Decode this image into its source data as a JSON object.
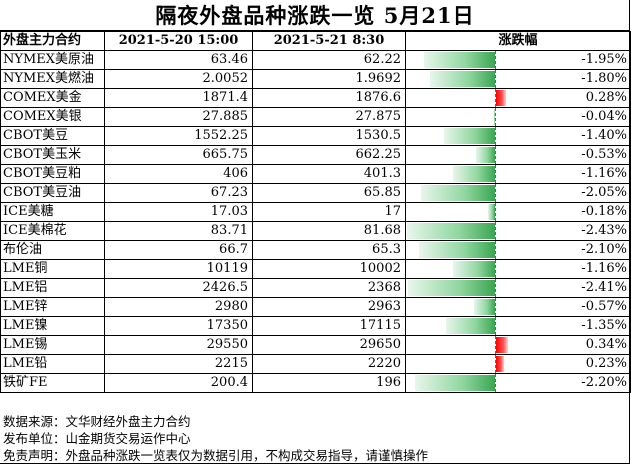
{
  "title": "隔夜外盘品种涨跌一览  5月21日",
  "headers": {
    "name": "外盘主力合约",
    "prev": "2021-5-20 15:00",
    "curr": "2021-5-21 8:30",
    "change": "涨跌幅"
  },
  "colors": {
    "negative_bar": "#3aa652",
    "positive_bar": "#ff0000"
  },
  "rows": [
    {
      "name": "NYMEX美原油",
      "prev": "63.46",
      "curr": "62.22",
      "change_pct": -1.95,
      "change": "-1.95%"
    },
    {
      "name": "NYMEX美燃油",
      "prev": "2.0052",
      "curr": "1.9692",
      "change_pct": -1.8,
      "change": "-1.80%"
    },
    {
      "name": "COMEX美金",
      "prev": "1871.4",
      "curr": "1876.6",
      "change_pct": 0.28,
      "change": "0.28%"
    },
    {
      "name": "COMEX美银",
      "prev": "27.885",
      "curr": "27.875",
      "change_pct": -0.04,
      "change": "-0.04%"
    },
    {
      "name": "CBOT美豆",
      "prev": "1552.25",
      "curr": "1530.5",
      "change_pct": -1.4,
      "change": "-1.40%"
    },
    {
      "name": "CBOT美玉米",
      "prev": "665.75",
      "curr": "662.25",
      "change_pct": -0.53,
      "change": "-0.53%"
    },
    {
      "name": "CBOT美豆粕",
      "prev": "406",
      "curr": "401.3",
      "change_pct": -1.16,
      "change": "-1.16%"
    },
    {
      "name": "CBOT美豆油",
      "prev": "67.23",
      "curr": "65.85",
      "change_pct": -2.05,
      "change": "-2.05%"
    },
    {
      "name": "ICE美糖",
      "prev": "17.03",
      "curr": "17",
      "change_pct": -0.18,
      "change": "-0.18%"
    },
    {
      "name": "ICE美棉花",
      "prev": "83.71",
      "curr": "81.68",
      "change_pct": -2.43,
      "change": "-2.43%"
    },
    {
      "name": "布伦油",
      "prev": "66.7",
      "curr": "65.3",
      "change_pct": -2.1,
      "change": "-2.10%"
    },
    {
      "name": "LME铜",
      "prev": "10119",
      "curr": "10002",
      "change_pct": -1.16,
      "change": "-1.16%"
    },
    {
      "name": "LME铝",
      "prev": "2426.5",
      "curr": "2368",
      "change_pct": -2.41,
      "change": "-2.41%"
    },
    {
      "name": "LME锌",
      "prev": "2980",
      "curr": "2963",
      "change_pct": -0.57,
      "change": "-0.57%"
    },
    {
      "name": "LME镍",
      "prev": "17350",
      "curr": "17115",
      "change_pct": -1.35,
      "change": "-1.35%"
    },
    {
      "name": "LME锡",
      "prev": "29550",
      "curr": "29650",
      "change_pct": 0.34,
      "change": "0.34%"
    },
    {
      "name": "LME铅",
      "prev": "2215",
      "curr": "2220",
      "change_pct": 0.23,
      "change": "0.23%"
    },
    {
      "name": "铁矿FE",
      "prev": "200.4",
      "curr": "196",
      "change_pct": -2.2,
      "change": "-2.20%"
    }
  ],
  "footer": {
    "source": "数据来源：文华财经外盘主力合约",
    "publisher": "发布单位：山金期货交易运作中心",
    "disclaimer": "免责声明：外盘品种涨跌一览表仅为数据引用，不构成交易指导，请谨慎操作"
  }
}
